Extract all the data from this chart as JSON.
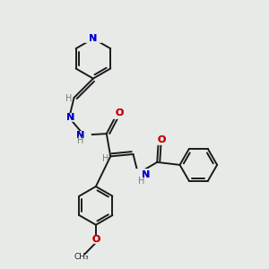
{
  "background_color": "#e8eae8",
  "bond_color": "#1a1a1a",
  "atom_colors": {
    "N": "#0000cc",
    "O": "#cc0000",
    "C": "#1a1a1a",
    "H": "#708070"
  },
  "figsize": [
    3.0,
    3.0
  ],
  "dpi": 100
}
